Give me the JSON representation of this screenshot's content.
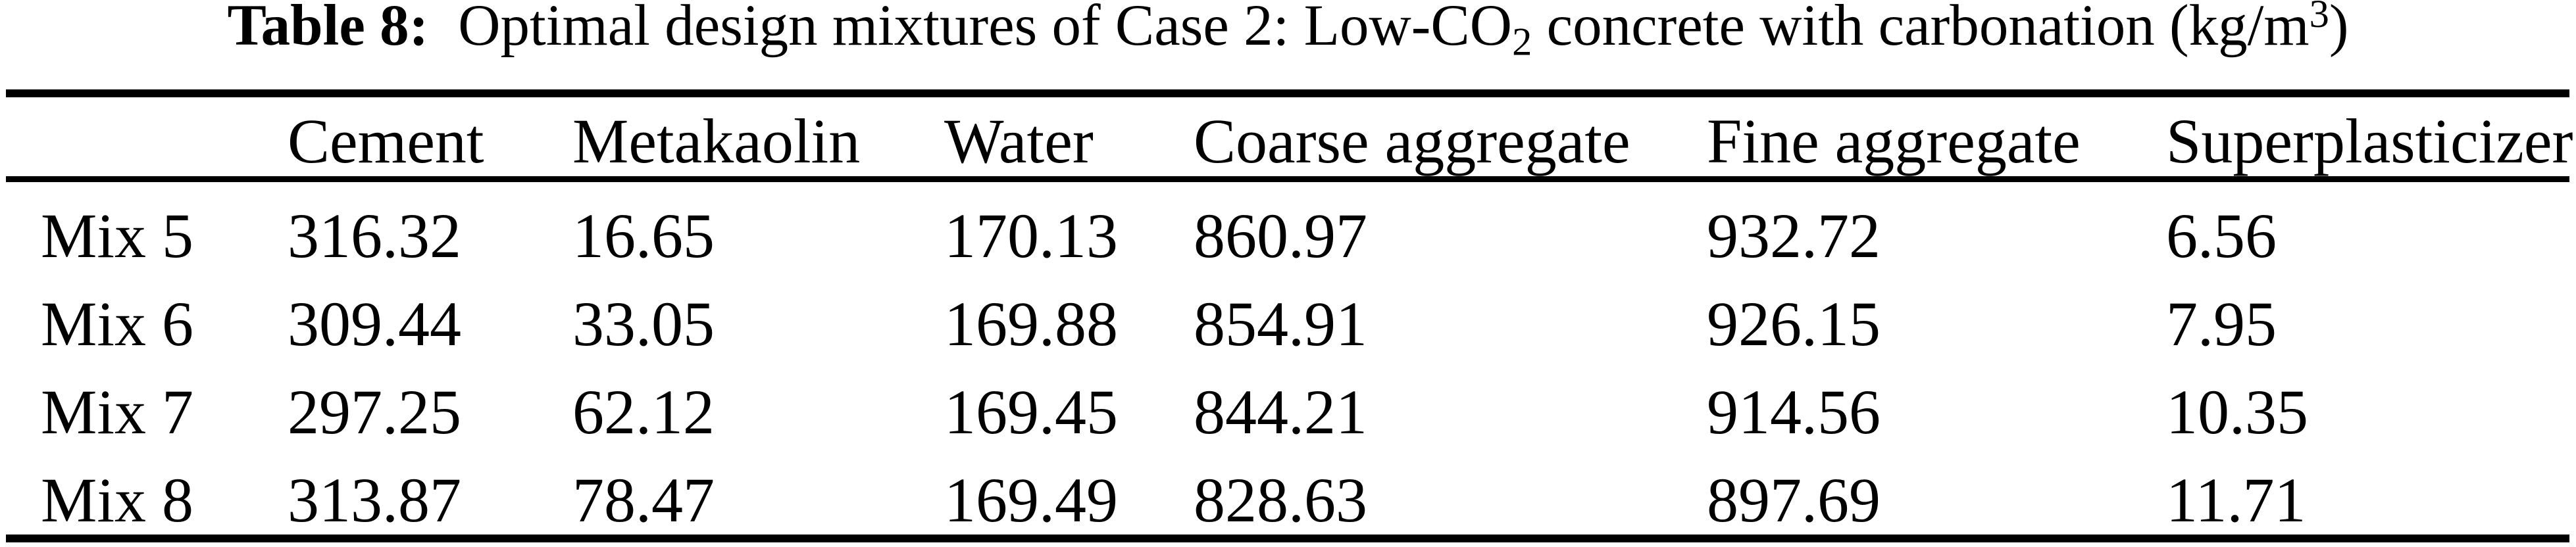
{
  "page": {
    "background": "#ffffff",
    "text_color": "#000000"
  },
  "caption": {
    "label": "Table 8:",
    "part1": "Optimal design mixtures of Case 2: Low-CO",
    "subscript": "2",
    "part2": " concrete with carbonation (kg/m",
    "superscript": "3",
    "part3": ")"
  },
  "table": {
    "columns": [
      "",
      "Cement",
      "Metakaolin",
      "Water",
      "Coarse aggregate",
      "Fine aggregate",
      "Superplasticizer"
    ],
    "rows": [
      {
        "label": "Mix 5",
        "values": [
          "316.32",
          "16.65",
          "170.13",
          "860.97",
          "932.72",
          "6.56"
        ]
      },
      {
        "label": "Mix 6",
        "values": [
          "309.44",
          "33.05",
          "169.88",
          "854.91",
          "926.15",
          "7.95"
        ]
      },
      {
        "label": "Mix 7",
        "values": [
          "297.25",
          "62.12",
          "169.45",
          "844.21",
          "914.56",
          "10.35"
        ]
      },
      {
        "label": "Mix 8",
        "values": [
          "313.87",
          "78.47",
          "169.49",
          "828.63",
          "897.69",
          "11.71"
        ]
      }
    ]
  }
}
